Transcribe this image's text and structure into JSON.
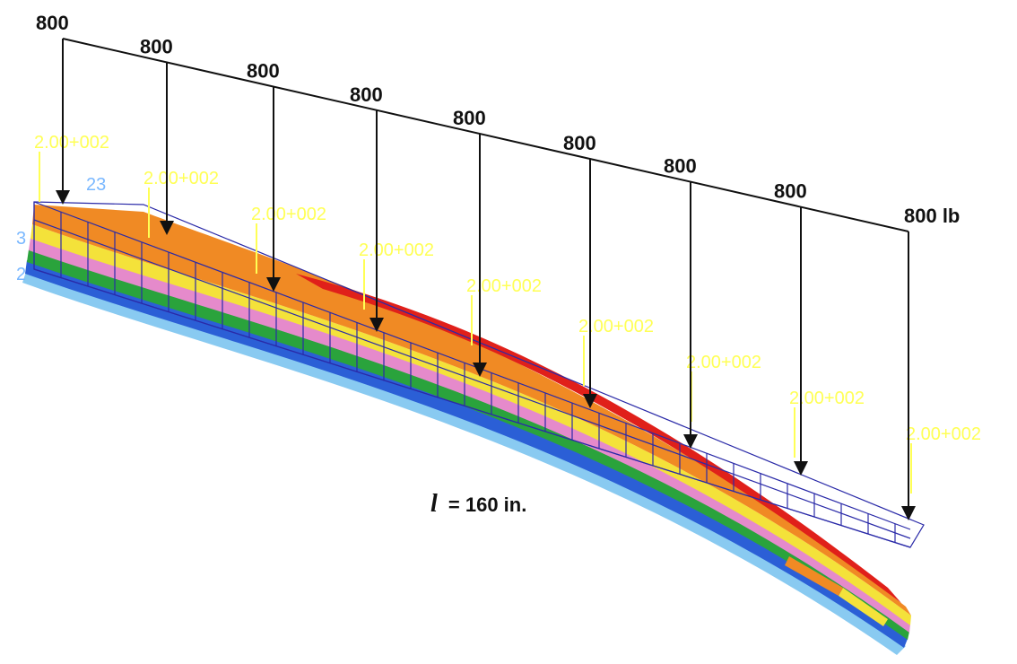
{
  "loads": [
    {
      "label": "800"
    },
    {
      "label": "800"
    },
    {
      "label": "800"
    },
    {
      "label": "800"
    },
    {
      "label": "800"
    },
    {
      "label": "800"
    },
    {
      "label": "800"
    },
    {
      "label": "800"
    },
    {
      "label": "800 lb"
    }
  ],
  "span": {
    "symbol": "l",
    "text": "= 160 in."
  },
  "node_values": [
    "2.00+002",
    "2.00+002",
    "2.00+002",
    "2.00+002",
    "2.00+002",
    "2.00+002",
    "2.00+002",
    "2.00+002",
    "2.00+002"
  ],
  "node_ids": [
    "23",
    "3",
    "2"
  ],
  "colors": {
    "orange": "#f08a24",
    "yellow": "#f4e23a",
    "pink": "#e58acb",
    "green": "#2aa33c",
    "blue": "#2b5fd6",
    "lightblue": "#7cc4f0",
    "red": "#e0201a",
    "mesh": "#2a2aa8",
    "label_yellow": "#ffff55"
  }
}
